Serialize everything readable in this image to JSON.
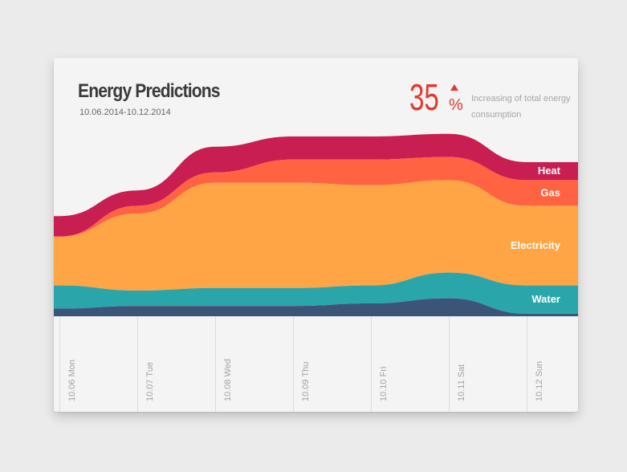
{
  "header": {
    "title": "Energy Predictions",
    "date_range": "10.06.2014-10.12.2014",
    "stat_value": "35",
    "stat_unit": "%",
    "stat_caption": "Increasing of total energy consumption"
  },
  "colors": {
    "Heat": "#c81e52",
    "Gas": "#ff6341",
    "Electricity": "#ffa545",
    "Water": "#2aa6aa",
    "base": "#3b5478",
    "accent": "#e03a2f"
  },
  "chart_data": {
    "type": "area",
    "stacked": true,
    "categories": [
      "10.06 Mon",
      "10.07 Tue",
      "10.08 Wed",
      "10.09 Thu",
      "10.10 Fri",
      "10.11 Sat",
      "10.12 Sun"
    ],
    "series": [
      {
        "name": "",
        "values": [
          3,
          4,
          4,
          4,
          5,
          7,
          1
        ]
      },
      {
        "name": "Water",
        "values": [
          9,
          6,
          7,
          7,
          7,
          10,
          11
        ]
      },
      {
        "name": "Electricity",
        "values": [
          19,
          30,
          41,
          41,
          39,
          36,
          31
        ]
      },
      {
        "name": "Gas",
        "values": [
          0,
          3,
          4,
          9,
          10,
          9,
          10
        ]
      },
      {
        "name": "Heat",
        "values": [
          8,
          6,
          10,
          9,
          9,
          9,
          7
        ]
      }
    ],
    "label_series": [
      "Heat",
      "Gas",
      "Electricity",
      "Water"
    ],
    "grid": "vertical",
    "legend": "inline-right"
  }
}
